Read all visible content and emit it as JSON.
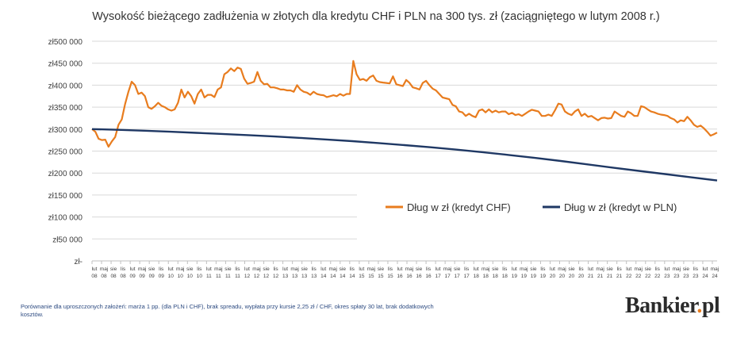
{
  "chart_data": {
    "type": "line",
    "title": "Wysokość bieżącego zadłużenia w złotych dla kredytu CHF i PLN na 300 tys. zł (zaciągniętego w lutym 2008 r.)",
    "ylim": [
      0,
      500000
    ],
    "y_ticks": [
      0,
      50000,
      100000,
      150000,
      200000,
      250000,
      300000,
      350000,
      400000,
      450000,
      500000
    ],
    "y_tick_labels": [
      "zł-",
      "zł50 000",
      "zł100 000",
      "zł150 000",
      "zł200 000",
      "zł250 000",
      "zł300 000",
      "zł350 000",
      "zł400 000",
      "zł450 000",
      "zł500 000"
    ],
    "x_month_labels": [
      "lut",
      "maj",
      "sie",
      "lis"
    ],
    "x_year_labels": [
      "08",
      "08",
      "08",
      "08",
      "09",
      "09",
      "09",
      "09",
      "10",
      "10",
      "10",
      "10",
      "11",
      "11",
      "11",
      "11",
      "12",
      "12",
      "12",
      "12",
      "13",
      "13",
      "13",
      "13",
      "14",
      "14",
      "14",
      "14",
      "15",
      "15",
      "15",
      "15",
      "16",
      "16",
      "16",
      "16",
      "17",
      "17",
      "17",
      "17",
      "18",
      "18",
      "18",
      "18",
      "19",
      "19",
      "19",
      "19",
      "20",
      "20",
      "20",
      "20",
      "21",
      "21",
      "21",
      "21",
      "22",
      "22",
      "22",
      "22",
      "23",
      "23",
      "23",
      "23",
      "24",
      "24"
    ],
    "legend": {
      "position": "center-right"
    },
    "grid": true,
    "series": [
      {
        "name": "Dług w zł (kredyt CHF)",
        "color": "#E87C1E",
        "values": [
          300000,
          294000,
          278000,
          275000,
          276000,
          260000,
          272000,
          282000,
          310000,
          322000,
          357000,
          385000,
          408000,
          400000,
          380000,
          383000,
          375000,
          350000,
          346000,
          352000,
          360000,
          353000,
          350000,
          345000,
          342000,
          345000,
          360000,
          390000,
          372000,
          385000,
          375000,
          358000,
          380000,
          390000,
          372000,
          378000,
          378000,
          373000,
          390000,
          395000,
          425000,
          430000,
          438000,
          432000,
          440000,
          437000,
          415000,
          403000,
          405000,
          408000,
          430000,
          410000,
          402000,
          403000,
          395000,
          395000,
          393000,
          390000,
          390000,
          388000,
          388000,
          385000,
          400000,
          390000,
          385000,
          383000,
          378000,
          385000,
          380000,
          378000,
          377000,
          373000,
          375000,
          377000,
          375000,
          380000,
          376000,
          380000,
          380000,
          455000,
          425000,
          412000,
          414000,
          410000,
          418000,
          422000,
          410000,
          407000,
          406000,
          405000,
          404000,
          420000,
          402000,
          400000,
          398000,
          412000,
          405000,
          395000,
          393000,
          390000,
          405000,
          410000,
          400000,
          392000,
          388000,
          380000,
          372000,
          370000,
          368000,
          355000,
          352000,
          340000,
          338000,
          330000,
          335000,
          330000,
          327000,
          342000,
          345000,
          338000,
          345000,
          338000,
          342000,
          338000,
          340000,
          340000,
          334000,
          337000,
          332000,
          334000,
          330000,
          335000,
          340000,
          344000,
          342000,
          340000,
          330000,
          330000,
          333000,
          330000,
          343000,
          358000,
          356000,
          340000,
          335000,
          332000,
          340000,
          345000,
          330000,
          335000,
          328000,
          330000,
          325000,
          320000,
          325000,
          326000,
          324000,
          325000,
          340000,
          335000,
          330000,
          328000,
          340000,
          336000,
          330000,
          330000,
          352000,
          350000,
          345000,
          340000,
          338000,
          335000,
          333000,
          332000,
          330000,
          325000,
          322000,
          315000,
          320000,
          318000,
          328000,
          320000,
          310000,
          305000,
          308000,
          302000,
          294000,
          285000,
          288000,
          292000
        ]
      },
      {
        "name": "Dług w zł (kredyt w PLN)",
        "color": "#1F3864",
        "values": [
          300000,
          298300,
          296300,
          294000,
          291600,
          289000,
          286300,
          283300,
          280000,
          276400,
          272500,
          268200,
          263600,
          258600,
          253200,
          247400,
          241200,
          234500,
          227400,
          219800,
          212300,
          204800,
          197600,
          190300,
          183000
        ]
      }
    ]
  },
  "footnote": "Porównanie dla uproszczonych założeń: marża 1 pp. (dla PLN i CHF), brak spreadu, wypłata przy kursie 2,25 zł / CHF, okres spłaty 30 lat, brak dodatkowych kosztów.",
  "logo": {
    "name": "Bankier",
    "dot": ".",
    "suffix": "pl"
  }
}
